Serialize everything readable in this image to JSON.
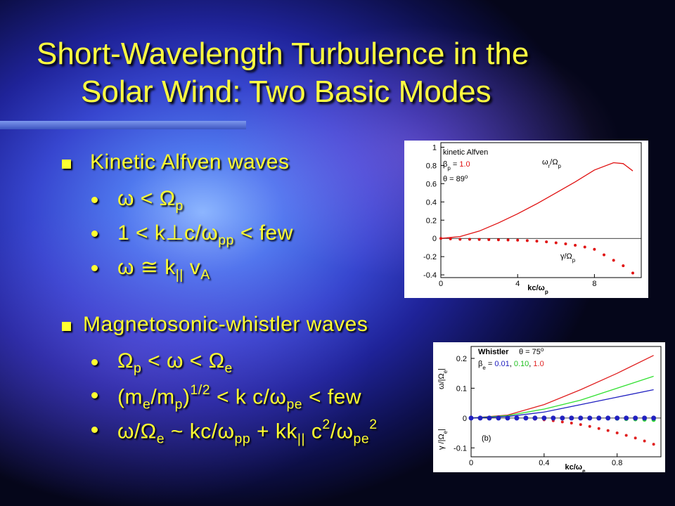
{
  "title": [
    "Short-Wavelength Turbulence in the",
    "Solar Wind: Two Basic Modes"
  ],
  "sections": [
    {
      "heading": "Kinetic Alfven waves",
      "items": [
        [
          {
            "text": "ω < Ω"
          },
          {
            "text": "p",
            "style": "sub"
          }
        ],
        [
          {
            "text": "1 < k"
          },
          {
            "text": "⊥"
          },
          {
            "text": "c/ω"
          },
          {
            "text": "pp",
            "style": "sub"
          },
          {
            "text": " < few"
          }
        ],
        [
          {
            "text": "ω ≅ k"
          },
          {
            "text": "||",
            "style": "sub"
          },
          {
            "text": " v"
          },
          {
            "text": "A",
            "style": "sub"
          }
        ]
      ]
    },
    {
      "heading": "Magnetosonic-whistler waves",
      "items": [
        [
          {
            "text": "Ω"
          },
          {
            "text": "p",
            "style": "sub"
          },
          {
            "text": " < ω < Ω"
          },
          {
            "text": "e",
            "style": "sub"
          }
        ],
        [
          {
            "text": "(m"
          },
          {
            "text": "e",
            "style": "sub"
          },
          {
            "text": "/m"
          },
          {
            "text": "p",
            "style": "sub"
          },
          {
            "text": ")"
          },
          {
            "text": "1/2",
            "style": "sup"
          },
          {
            "text": " < k c/ω"
          },
          {
            "text": "pe",
            "style": "sub"
          },
          {
            "text": " < few"
          }
        ],
        [
          {
            "text": "ω/Ω"
          },
          {
            "text": "e",
            "style": "sub"
          },
          {
            "text": " ~ kc/ω"
          },
          {
            "text": "pp",
            "style": "sub"
          },
          {
            "text": " + kk"
          },
          {
            "text": "||",
            "style": "sub"
          },
          {
            "text": " c"
          },
          {
            "text": "2",
            "style": "sup"
          },
          {
            "text": "/ω"
          },
          {
            "text": "pe",
            "style": "sub"
          },
          {
            "text": "2",
            "style": "sup"
          }
        ]
      ]
    }
  ],
  "figures": [
    {
      "type": "line",
      "xlim": [
        0,
        10.44
      ],
      "ylim": [
        -0.43,
        1.05
      ],
      "xticks": [
        0,
        4,
        8
      ],
      "yticks": [
        1,
        0.8,
        0.6,
        0.4,
        0.2,
        0,
        -0.2,
        -0.4
      ],
      "labels": [
        [
          {
            "text": "kinetic Alfven"
          }
        ],
        [
          {
            "text": "β"
          },
          {
            "text": "p",
            "style": "sub"
          },
          {
            "text": " = "
          },
          {
            "text": "1.0",
            "color": "#e01010"
          }
        ],
        [
          {
            "text": "θ = 89"
          },
          {
            "text": "o",
            "style": "sup"
          }
        ],
        [
          {
            "text": "ω"
          },
          {
            "text": "r",
            "style": "sub"
          },
          {
            "text": "/Ω"
          },
          {
            "text": "p",
            "style": "sub"
          }
        ],
        [
          {
            "text": "γ/Ω"
          },
          {
            "text": "p",
            "style": "sub"
          }
        ]
      ],
      "xlabel": [
        {
          "text": "kc/ω"
        },
        {
          "text": "p",
          "style": "sub"
        }
      ],
      "series": [
        {
          "style": "line",
          "color": "#e01010",
          "x": [
            0,
            1,
            2,
            3,
            4,
            5,
            6,
            7,
            8,
            9,
            9.5,
            10
          ],
          "values": [
            0,
            0.02,
            0.08,
            0.17,
            0.27,
            0.38,
            0.5,
            0.62,
            0.75,
            0.83,
            0.82,
            0.74
          ]
        },
        {
          "style": "dots",
          "color": "#e01010",
          "x": [
            0,
            0.5,
            1,
            1.5,
            2,
            2.5,
            3,
            3.5,
            4,
            4.5,
            5,
            5.5,
            6,
            6.5,
            7,
            7.5,
            8,
            8.5,
            9,
            9.5,
            10
          ],
          "values": [
            0,
            -0.005,
            -0.01,
            -0.01,
            -0.012,
            -0.014,
            -0.016,
            -0.018,
            -0.02,
            -0.024,
            -0.03,
            -0.038,
            -0.048,
            -0.06,
            -0.075,
            -0.095,
            -0.12,
            -0.18,
            -0.24,
            -0.3,
            -0.38
          ]
        }
      ]
    },
    {
      "type": "line",
      "xlim": [
        0,
        1.04
      ],
      "ylim": [
        -0.13,
        0.24
      ],
      "xticks": [
        0,
        0.4,
        0.8
      ],
      "yticks": [
        0.2,
        0.1,
        0,
        -0.1
      ],
      "labels": [
        [
          {
            "text": "Whistler"
          }
        ],
        [
          {
            "text": "θ = 75"
          },
          {
            "text": "o",
            "style": "sup"
          }
        ],
        [
          {
            "text": "β"
          },
          {
            "text": "e",
            "style": "sub"
          },
          {
            "text": " = "
          },
          {
            "text": "0.01",
            "color": "#2020c0"
          },
          {
            "text": ", "
          },
          {
            "text": "0.10",
            "color": "#20c020"
          },
          {
            "text": ", "
          },
          {
            "text": "1.0",
            "color": "#e02020"
          }
        ],
        [
          {
            "text": "(b)"
          }
        ],
        [
          {
            "text": "ω/|Ω"
          },
          {
            "text": "e",
            "style": "sub"
          },
          {
            "text": "|"
          }
        ],
        [
          {
            "text": "γ /|Ω"
          },
          {
            "text": "e",
            "style": "sub"
          },
          {
            "text": "|"
          }
        ]
      ],
      "xlabel": [
        {
          "text": "kc/ω"
        },
        {
          "text": "e",
          "style": "sub"
        }
      ],
      "series": [
        {
          "style": "line",
          "color": "#e02020",
          "x": [
            0,
            0.2,
            0.4,
            0.6,
            0.8,
            1.0
          ],
          "values": [
            0,
            0.01,
            0.045,
            0.095,
            0.15,
            0.21
          ]
        },
        {
          "style": "line",
          "color": "#30e030",
          "x": [
            0,
            0.2,
            0.4,
            0.6,
            0.8,
            1.0
          ],
          "values": [
            0,
            0.008,
            0.03,
            0.06,
            0.1,
            0.14
          ]
        },
        {
          "style": "line",
          "color": "#2020c0",
          "x": [
            0,
            0.2,
            0.4,
            0.6,
            0.8,
            1.0
          ],
          "values": [
            0,
            0.005,
            0.02,
            0.045,
            0.07,
            0.095
          ]
        },
        {
          "style": "dots",
          "color": "#e02020",
          "x": [
            0,
            0.05,
            0.1,
            0.15,
            0.2,
            0.25,
            0.3,
            0.35,
            0.4,
            0.45,
            0.5,
            0.55,
            0.6,
            0.65,
            0.7,
            0.75,
            0.8,
            0.85,
            0.9,
            0.95,
            1.0
          ],
          "values": [
            0,
            0,
            0,
            0,
            0,
            -0.001,
            -0.002,
            -0.004,
            -0.006,
            -0.009,
            -0.013,
            -0.017,
            -0.022,
            -0.028,
            -0.035,
            -0.042,
            -0.05,
            -0.058,
            -0.067,
            -0.077,
            -0.088
          ]
        },
        {
          "style": "dots",
          "color": "#30e030",
          "x": [
            0,
            0.05,
            0.1,
            0.15,
            0.2,
            0.25,
            0.3,
            0.35,
            0.4,
            0.45,
            0.5,
            0.55,
            0.6,
            0.65,
            0.7,
            0.75,
            0.8,
            0.85,
            0.9,
            0.95,
            1.0
          ],
          "values": [
            0,
            0,
            0,
            0,
            0,
            0,
            0,
            0,
            0,
            0,
            0,
            0,
            0,
            0,
            0,
            -0.001,
            -0.002,
            -0.003,
            -0.004,
            -0.005,
            -0.006
          ]
        },
        {
          "style": "dots",
          "color": "#2020c0",
          "x": [
            0,
            0.05,
            0.1,
            0.15,
            0.2,
            0.25,
            0.3,
            0.35,
            0.4,
            0.45,
            0.5,
            0.55,
            0.6,
            0.65,
            0.7,
            0.75,
            0.8,
            0.85,
            0.9,
            0.95,
            1.0
          ],
          "values": [
            0,
            0,
            0,
            0,
            0,
            0,
            0,
            0,
            0,
            0,
            0,
            0,
            0,
            0,
            0,
            0,
            0,
            0,
            0,
            0,
            0
          ]
        }
      ]
    }
  ]
}
